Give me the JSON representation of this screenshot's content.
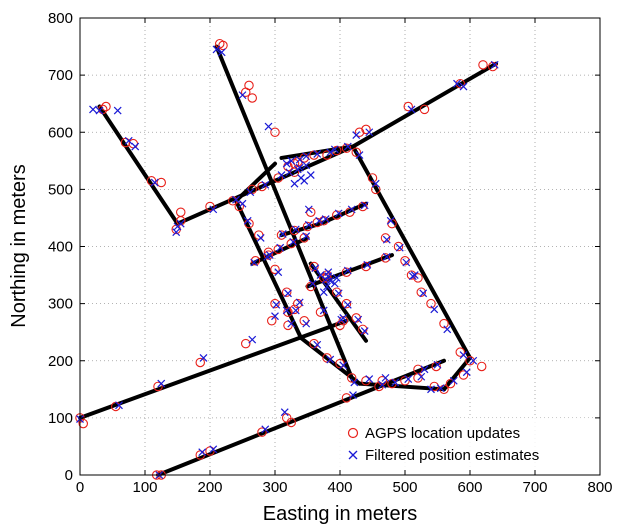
{
  "chart_data": {
    "type": "scatter",
    "xlabel": "Easting in meters",
    "ylabel": "Northing in meters",
    "xlim": [
      0,
      800
    ],
    "ylim": [
      0,
      800
    ],
    "x_ticks": [
      "0",
      "100",
      "200",
      "300",
      "400",
      "500",
      "600",
      "700",
      "800"
    ],
    "y_ticks": [
      "0",
      "100",
      "200",
      "300",
      "400",
      "500",
      "600",
      "700",
      "800"
    ],
    "grid": true,
    "legend_position": "bottom-right",
    "colors": {
      "agps": "#e8201a",
      "filtered": "#1a1ad6",
      "road": "#000000"
    },
    "roads": [
      [
        [
          0,
          100
        ],
        [
          410,
          270
        ]
      ],
      [
        [
          120,
          0
        ],
        [
          560,
          200
        ]
      ],
      [
        [
          30,
          645
        ],
        [
          150,
          440
        ]
      ],
      [
        [
          150,
          440
        ],
        [
          420,
          575
        ]
      ],
      [
        [
          420,
          575
        ],
        [
          640,
          720
        ]
      ],
      [
        [
          210,
          750
        ],
        [
          420,
          165
        ]
      ],
      [
        [
          420,
          575
        ],
        [
          600,
          205
        ]
      ],
      [
        [
          560,
          150
        ],
        [
          600,
          205
        ]
      ],
      [
        [
          310,
          555
        ],
        [
          420,
          575
        ]
      ],
      [
        [
          240,
          480
        ],
        [
          300,
          545
        ]
      ],
      [
        [
          240,
          480
        ],
        [
          340,
          240
        ]
      ],
      [
        [
          340,
          240
        ],
        [
          430,
          160
        ]
      ],
      [
        [
          430,
          160
        ],
        [
          560,
          150
        ]
      ],
      [
        [
          265,
          370
        ],
        [
          350,
          415
        ]
      ],
      [
        [
          370,
          440
        ],
        [
          440,
          475
        ]
      ],
      [
        [
          350,
          330
        ],
        [
          480,
          385
        ]
      ],
      [
        [
          355,
          370
        ],
        [
          440,
          235
        ]
      ],
      [
        [
          310,
          420
        ],
        [
          370,
          440
        ]
      ]
    ],
    "series": [
      {
        "name": "AGPS location updates",
        "marker": "circle",
        "points": [
          [
            0,
            100
          ],
          [
            5,
            90
          ],
          [
            55,
            120
          ],
          [
            120,
            155
          ],
          [
            185,
            197
          ],
          [
            255,
            230
          ],
          [
            320,
            262
          ],
          [
            370,
            285
          ],
          [
            405,
            270
          ],
          [
            118,
            0
          ],
          [
            125,
            0
          ],
          [
            185,
            35
          ],
          [
            200,
            42
          ],
          [
            280,
            75
          ],
          [
            318,
            100
          ],
          [
            325,
            92
          ],
          [
            410,
            135
          ],
          [
            465,
            165
          ],
          [
            520,
            185
          ],
          [
            548,
            190
          ],
          [
            40,
            645
          ],
          [
            35,
            640
          ],
          [
            70,
            582
          ],
          [
            82,
            580
          ],
          [
            110,
            515
          ],
          [
            125,
            512
          ],
          [
            155,
            445
          ],
          [
            155,
            460
          ],
          [
            148,
            430
          ],
          [
            200,
            470
          ],
          [
            235,
            480
          ],
          [
            280,
            505
          ],
          [
            305,
            520
          ],
          [
            330,
            530
          ],
          [
            380,
            560
          ],
          [
            430,
            600
          ],
          [
            440,
            605
          ],
          [
            505,
            645
          ],
          [
            530,
            640
          ],
          [
            585,
            685
          ],
          [
            620,
            718
          ],
          [
            635,
            715
          ],
          [
            215,
            755
          ],
          [
            220,
            752
          ],
          [
            255,
            670
          ],
          [
            260,
            682
          ],
          [
            265,
            660
          ],
          [
            300,
            600
          ],
          [
            330,
            545
          ],
          [
            355,
            460
          ],
          [
            380,
            350
          ],
          [
            400,
            262
          ],
          [
            418,
            170
          ],
          [
            425,
            565
          ],
          [
            450,
            520
          ],
          [
            455,
            500
          ],
          [
            480,
            440
          ],
          [
            520,
            345
          ],
          [
            540,
            300
          ],
          [
            560,
            265
          ],
          [
            585,
            215
          ],
          [
            600,
            200
          ],
          [
            618,
            190
          ],
          [
            545,
            155
          ],
          [
            560,
            150
          ],
          [
            570,
            160
          ],
          [
            590,
            175
          ],
          [
            245,
            470
          ],
          [
            265,
            500
          ],
          [
            260,
            440
          ],
          [
            275,
            420
          ],
          [
            290,
            390
          ],
          [
            300,
            360
          ],
          [
            318,
            320
          ],
          [
            330,
            290
          ],
          [
            345,
            270
          ],
          [
            360,
            230
          ],
          [
            380,
            205
          ],
          [
            400,
            195
          ],
          [
            270,
            375
          ],
          [
            290,
            385
          ],
          [
            305,
            395
          ],
          [
            325,
            405
          ],
          [
            345,
            415
          ],
          [
            375,
            445
          ],
          [
            395,
            455
          ],
          [
            415,
            460
          ],
          [
            435,
            470
          ],
          [
            355,
            330
          ],
          [
            380,
            345
          ],
          [
            410,
            355
          ],
          [
            440,
            365
          ],
          [
            470,
            380
          ],
          [
            360,
            365
          ],
          [
            375,
            345
          ],
          [
            395,
            320
          ],
          [
            410,
            300
          ],
          [
            425,
            275
          ],
          [
            435,
            255
          ],
          [
            310,
            420
          ],
          [
            330,
            428
          ],
          [
            350,
            435
          ],
          [
            365,
            442
          ],
          [
            320,
            540
          ],
          [
            335,
            548
          ],
          [
            345,
            555
          ],
          [
            360,
            560
          ],
          [
            395,
            568
          ],
          [
            410,
            572
          ],
          [
            300,
            300
          ],
          [
            295,
            270
          ],
          [
            320,
            285
          ],
          [
            335,
            300
          ],
          [
            440,
            165
          ],
          [
            460,
            155
          ],
          [
            480,
            160
          ],
          [
            500,
            165
          ],
          [
            520,
            170
          ],
          [
            470,
            415
          ],
          [
            490,
            400
          ],
          [
            500,
            375
          ],
          [
            510,
            350
          ],
          [
            525,
            320
          ]
        ]
      },
      {
        "name": "Filtered position estimates",
        "marker": "x",
        "points": [
          [
            0,
            98
          ],
          [
            60,
            122
          ],
          [
            125,
            160
          ],
          [
            190,
            205
          ],
          [
            265,
            237
          ],
          [
            325,
            265
          ],
          [
            375,
            288
          ],
          [
            402,
            272
          ],
          [
            122,
            0
          ],
          [
            188,
            40
          ],
          [
            205,
            45
          ],
          [
            285,
            80
          ],
          [
            315,
            110
          ],
          [
            420,
            140
          ],
          [
            470,
            170
          ],
          [
            530,
            185
          ],
          [
            550,
            193
          ],
          [
            20,
            640
          ],
          [
            30,
            638
          ],
          [
            58,
            638
          ],
          [
            75,
            585
          ],
          [
            85,
            575
          ],
          [
            115,
            512
          ],
          [
            150,
            435
          ],
          [
            155,
            440
          ],
          [
            148,
            425
          ],
          [
            205,
            465
          ],
          [
            240,
            482
          ],
          [
            285,
            508
          ],
          [
            310,
            525
          ],
          [
            335,
            535
          ],
          [
            385,
            565
          ],
          [
            425,
            595
          ],
          [
            445,
            600
          ],
          [
            510,
            640
          ],
          [
            580,
            685
          ],
          [
            590,
            680
          ],
          [
            638,
            718
          ],
          [
            210,
            745
          ],
          [
            218,
            740
          ],
          [
            250,
            665
          ],
          [
            290,
            610
          ],
          [
            325,
            550
          ],
          [
            352,
            465
          ],
          [
            382,
            355
          ],
          [
            405,
            275
          ],
          [
            422,
            162
          ],
          [
            430,
            560
          ],
          [
            455,
            510
          ],
          [
            478,
            445
          ],
          [
            515,
            350
          ],
          [
            545,
            290
          ],
          [
            565,
            255
          ],
          [
            590,
            210
          ],
          [
            605,
            200
          ],
          [
            540,
            150
          ],
          [
            555,
            152
          ],
          [
            575,
            165
          ],
          [
            595,
            180
          ],
          [
            250,
            475
          ],
          [
            262,
            495
          ],
          [
            258,
            445
          ],
          [
            278,
            415
          ],
          [
            292,
            385
          ],
          [
            305,
            355
          ],
          [
            320,
            318
          ],
          [
            332,
            288
          ],
          [
            348,
            265
          ],
          [
            365,
            228
          ],
          [
            385,
            202
          ],
          [
            405,
            192
          ],
          [
            268,
            372
          ],
          [
            288,
            382
          ],
          [
            308,
            398
          ],
          [
            328,
            408
          ],
          [
            348,
            418
          ],
          [
            378,
            448
          ],
          [
            398,
            458
          ],
          [
            418,
            465
          ],
          [
            438,
            472
          ],
          [
            358,
            335
          ],
          [
            382,
            348
          ],
          [
            412,
            358
          ],
          [
            442,
            368
          ],
          [
            472,
            382
          ],
          [
            362,
            362
          ],
          [
            378,
            342
          ],
          [
            398,
            318
          ],
          [
            412,
            298
          ],
          [
            428,
            272
          ],
          [
            438,
            252
          ],
          [
            312,
            422
          ],
          [
            332,
            430
          ],
          [
            352,
            438
          ],
          [
            368,
            445
          ],
          [
            318,
            545
          ],
          [
            338,
            552
          ],
          [
            348,
            558
          ],
          [
            365,
            562
          ],
          [
            392,
            570
          ],
          [
            412,
            575
          ],
          [
            302,
            298
          ],
          [
            318,
            288
          ],
          [
            338,
            302
          ],
          [
            300,
            278
          ],
          [
            445,
            168
          ],
          [
            465,
            158
          ],
          [
            485,
            162
          ],
          [
            505,
            168
          ],
          [
            525,
            172
          ],
          [
            472,
            412
          ],
          [
            492,
            398
          ],
          [
            502,
            372
          ],
          [
            512,
            348
          ],
          [
            528,
            318
          ],
          [
            340,
            520
          ],
          [
            345,
            515
          ],
          [
            330,
            510
          ],
          [
            355,
            525
          ],
          [
            338,
            538
          ],
          [
            322,
            530
          ],
          [
            348,
            542
          ],
          [
            380,
            330
          ],
          [
            385,
            340
          ],
          [
            375,
            320
          ],
          [
            392,
            335
          ],
          [
            370,
            350
          ],
          [
            395,
            345
          ]
        ]
      }
    ]
  }
}
